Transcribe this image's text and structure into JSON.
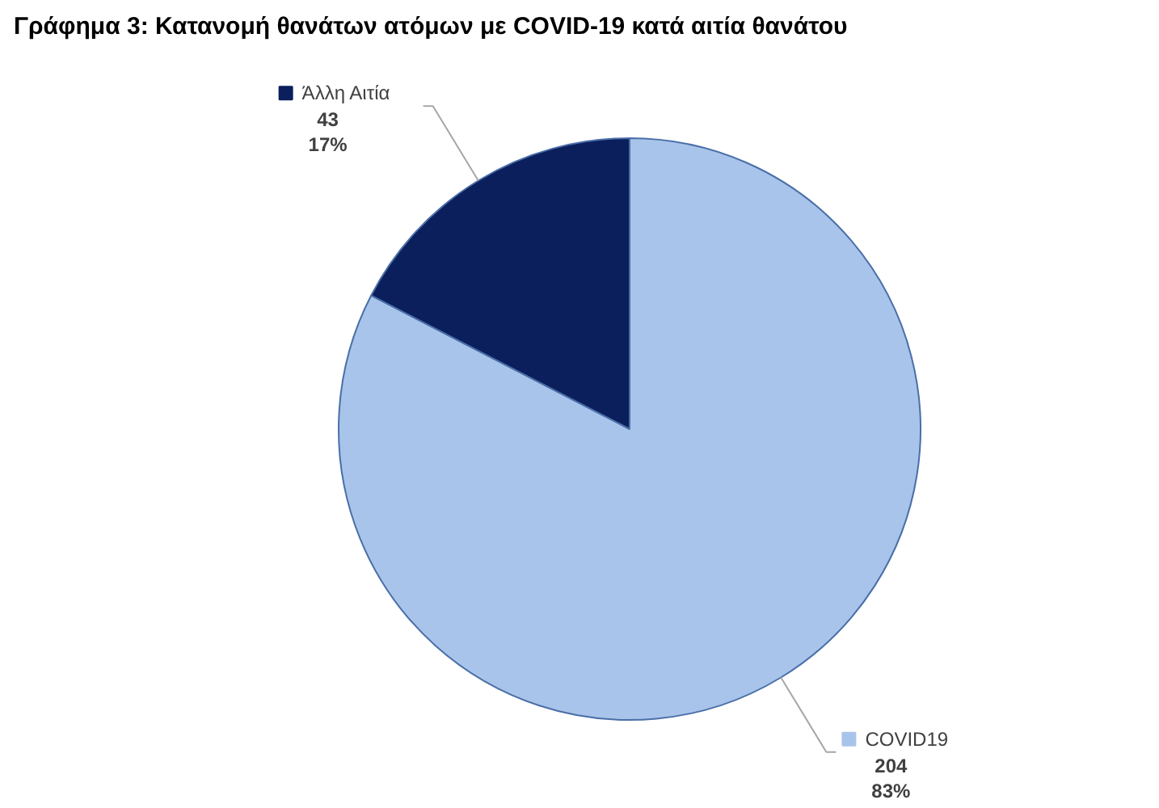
{
  "chart_data": {
    "type": "pie",
    "title": "Γράφημα 3: Κατανομή θανάτων ατόμων με COVID-19 κατά αιτία θανάτου",
    "categories": [
      "COVID19",
      "Άλλη Αιτία"
    ],
    "values": [
      204,
      43
    ],
    "colors": [
      "#a9c4ea",
      "#0b1f5c"
    ],
    "value_labels": [
      "204\n83%",
      "43\n17%"
    ],
    "legend": "top left"
  }
}
